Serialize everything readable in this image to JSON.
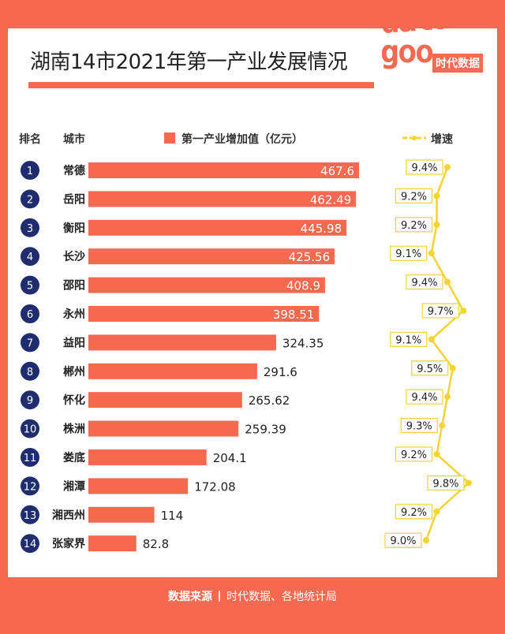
{
  "title": "湖南14市2021年第一产业发展情况",
  "logo": {
    "word_top": "data",
    "word_bottom": "goo",
    "brand": "时代数据"
  },
  "header": {
    "rank": "排名",
    "city": "城市",
    "value": "第一产业增加值（亿元）",
    "growth": "增速"
  },
  "footer": {
    "label": "数据来源",
    "source": "时代数据、各地统计局"
  },
  "colors": {
    "bar": "#f4694f",
    "rank_badge": "#1f2d6e",
    "growth_line": "#f5d335",
    "background": "#f4694f"
  },
  "chart_data": {
    "type": "bar",
    "orientation": "horizontal",
    "categories": [
      "常德",
      "岳阳",
      "衡阳",
      "长沙",
      "邵阳",
      "永州",
      "益阳",
      "郴州",
      "怀化",
      "株洲",
      "娄底",
      "湘潭",
      "湘西州",
      "张家界"
    ],
    "ranks": [
      1,
      2,
      3,
      4,
      5,
      6,
      7,
      8,
      9,
      10,
      11,
      12,
      13,
      14
    ],
    "series": [
      {
        "name": "第一产业增加值（亿元）",
        "type": "bar",
        "values": [
          467.6,
          462.49,
          445.98,
          425.56,
          408.9,
          398.51,
          324.35,
          291.6,
          265.62,
          259.39,
          204.1,
          172.08,
          114,
          82.8
        ],
        "labels": [
          "467.6",
          "462.49",
          "445.98",
          "425.56",
          "408.9",
          "398.51",
          "324.35",
          "291.6",
          "265.62",
          "259.39",
          "204.1",
          "172.08",
          "114",
          "82.8"
        ]
      },
      {
        "name": "增速",
        "type": "line",
        "values": [
          9.4,
          9.2,
          9.2,
          9.1,
          9.4,
          9.7,
          9.1,
          9.5,
          9.4,
          9.3,
          9.2,
          9.8,
          9.2,
          9.0
        ],
        "labels": [
          "9.4%",
          "9.2%",
          "9.2%",
          "9.1%",
          "9.4%",
          "9.7%",
          "9.1%",
          "9.5%",
          "9.4%",
          "9.3%",
          "9.2%",
          "9.8%",
          "9.2%",
          "9.0%"
        ]
      }
    ],
    "legend": "top",
    "grid": false
  }
}
